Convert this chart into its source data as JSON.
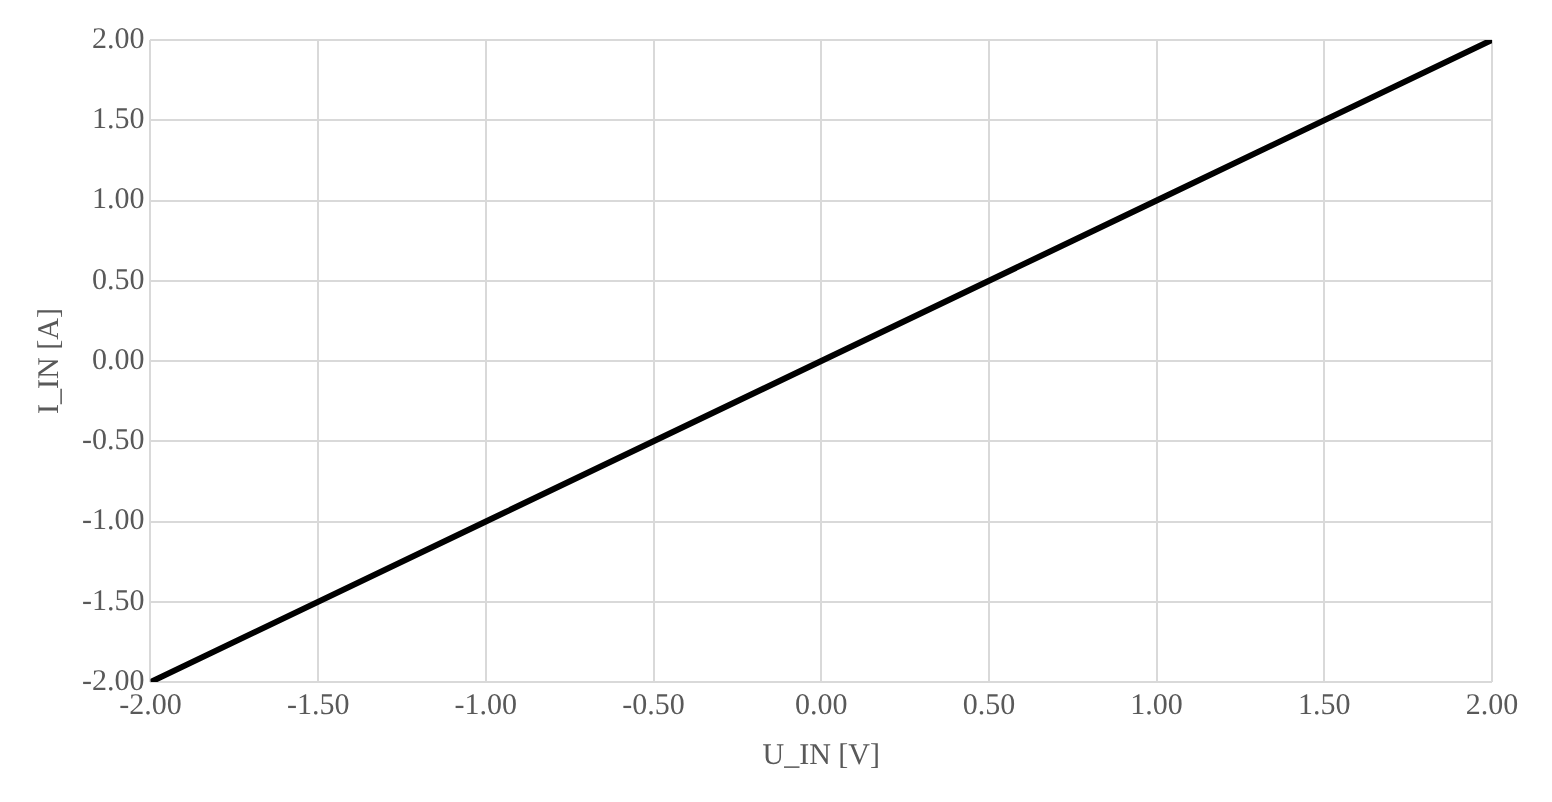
{
  "chart_data": {
    "type": "line",
    "xlabel": "U_IN [V]",
    "ylabel": "I_IN [A]",
    "x": [
      -2,
      -1,
      0,
      1,
      2
    ],
    "series": [
      {
        "color": "#000000",
        "values": [
          -2,
          -1,
          0,
          1,
          2
        ]
      }
    ],
    "xlim": [
      -2,
      2
    ],
    "ylim": [
      -2,
      2
    ],
    "xticks": [
      {
        "value": -2,
        "label": "-2.00"
      },
      {
        "value": -1.5,
        "label": "-1.50"
      },
      {
        "value": -1,
        "label": "-1.00"
      },
      {
        "value": -0.5,
        "label": "-0.50"
      },
      {
        "value": 0,
        "label": "0.00"
      },
      {
        "value": 0.5,
        "label": "0.50"
      },
      {
        "value": 1,
        "label": "1.00"
      },
      {
        "value": 1.5,
        "label": "1.50"
      },
      {
        "value": 2,
        "label": "2.00"
      }
    ],
    "yticks": [
      {
        "value": -2,
        "label": "-2.00"
      },
      {
        "value": -1.5,
        "label": "-1.50"
      },
      {
        "value": -1,
        "label": "-1.00"
      },
      {
        "value": -0.5,
        "label": "-0.50"
      },
      {
        "value": 0,
        "label": "0.00"
      },
      {
        "value": 0.5,
        "label": "0.50"
      },
      {
        "value": 1,
        "label": "1.00"
      },
      {
        "value": 1.5,
        "label": "1.50"
      },
      {
        "value": 2,
        "label": "2.00"
      }
    ],
    "grid": true,
    "legend": false,
    "marker": "none",
    "line_style": "solid"
  }
}
